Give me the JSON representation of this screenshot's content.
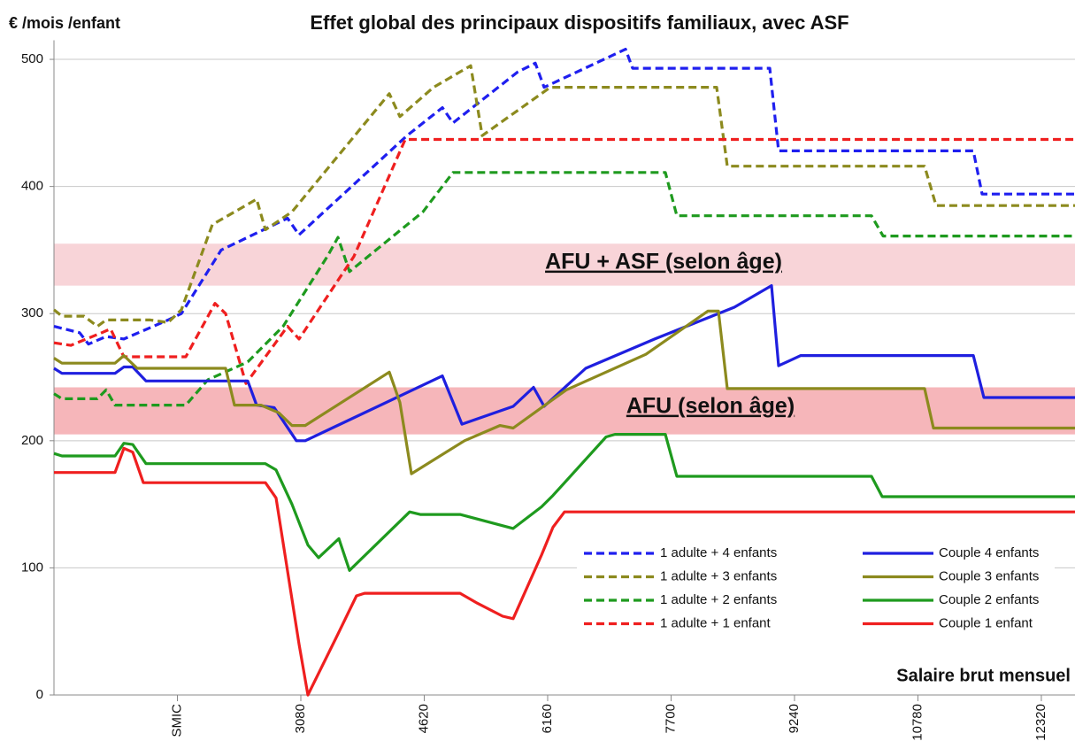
{
  "chart_data": {
    "type": "line",
    "title": "Effet global des principaux dispositifs familiaux, avec ASF",
    "y_label": "€ /mois /enfant",
    "x_label": "Salaire brut mensuel",
    "xlim": [
      0,
      12740
    ],
    "ylim": [
      0,
      515
    ],
    "xticks": [
      {
        "value": 1540,
        "label": "SMIC"
      },
      3080,
      4620,
      6160,
      7700,
      9240,
      10780,
      12320
    ],
    "yticks": [
      0,
      100,
      200,
      300,
      400,
      500
    ],
    "grid": true,
    "legend": "lower right",
    "bands": [
      {
        "label": "AFU + ASF (selon âge)",
        "range": [
          322,
          355
        ],
        "color": "#f7cdd1"
      },
      {
        "label": "AFU (selon âge)",
        "range": [
          205,
          242
        ],
        "color": "#f5a9ae"
      }
    ],
    "series": [
      {
        "name": "1 adulte + 4 enfants",
        "color": "#1f1fef",
        "style": "dashed",
        "x": [
          0,
          320,
          431,
          651,
          872,
          1424,
          1590,
          2087,
          2915,
          3058,
          4405,
          4847,
          4979,
          5785,
          6006,
          6116,
          7132,
          7220,
          8931,
          9042,
          11471,
          11581,
          12740
        ],
        "values": [
          290,
          285,
          276,
          282,
          280,
          295,
          300,
          350,
          375,
          362,
          440,
          462,
          450,
          490,
          497,
          478,
          508,
          493,
          493,
          428,
          428,
          394,
          394
        ]
      },
      {
        "name": "1 adulte + 3 enfants",
        "color": "#8c8a1e",
        "style": "dashed",
        "x": [
          0,
          99,
          375,
          541,
          651,
          1203,
          1424,
          1590,
          1976,
          2528,
          2639,
          2970,
          4184,
          4317,
          4736,
          5200,
          5343,
          6193,
          8269,
          8401,
          10863,
          11007,
          12740
        ],
        "values": [
          303,
          298,
          298,
          290,
          295,
          295,
          293,
          303,
          370,
          390,
          366,
          380,
          473,
          455,
          478,
          495,
          440,
          478,
          478,
          416,
          416,
          385,
          385
        ]
      },
      {
        "name": "1 adulte + 2 enfants",
        "color": "#1e9a1e",
        "style": "dashed",
        "x": [
          0,
          99,
          541,
          651,
          762,
          1645,
          1921,
          2418,
          2859,
          3411,
          3544,
          3687,
          4604,
          4979,
          7629,
          7772,
          10201,
          10345,
          12740
        ],
        "values": [
          237,
          233,
          233,
          240,
          228,
          228,
          248,
          262,
          290,
          345,
          360,
          333,
          380,
          411,
          411,
          377,
          377,
          361,
          361
        ]
      },
      {
        "name": "1 adulte + 1 enfant",
        "color": "#ef1f1f",
        "style": "dashed",
        "x": [
          0,
          210,
          596,
          707,
          872,
          1645,
          2009,
          2142,
          2396,
          2915,
          3058,
          3743,
          4383,
          12740
        ],
        "values": [
          277,
          275,
          285,
          288,
          266,
          266,
          308,
          300,
          245,
          290,
          280,
          345,
          437,
          437
        ]
      },
      {
        "name": "Couple 4 enfants",
        "color": "#1f1fdf",
        "style": "solid",
        "x": [
          0,
          99,
          762,
          872,
          983,
          1148,
          2418,
          2528,
          2749,
          3025,
          3135,
          4847,
          5090,
          5730,
          5984,
          6116,
          6635,
          7496,
          8490,
          8953,
          9042,
          9318,
          11471,
          11603,
          12740
        ],
        "values": [
          257,
          253,
          253,
          258,
          258,
          247,
          247,
          228,
          226,
          200,
          200,
          251,
          213,
          227,
          242,
          227,
          257,
          280,
          305,
          322,
          259,
          267,
          267,
          234,
          234
        ]
      },
      {
        "name": "Couple 3 enfants",
        "color": "#8c8a1e",
        "style": "solid",
        "x": [
          0,
          99,
          762,
          872,
          1038,
          2142,
          2252,
          2583,
          2804,
          2970,
          3135,
          4184,
          4317,
          4460,
          5123,
          5564,
          5730,
          6392,
          7386,
          8158,
          8291,
          8401,
          10863,
          10974,
          12740
        ],
        "values": [
          265,
          261,
          261,
          267,
          257,
          257,
          228,
          228,
          222,
          212,
          212,
          254,
          230,
          174,
          200,
          212,
          210,
          240,
          268,
          302,
          302,
          241,
          241,
          210,
          210
        ]
      },
      {
        "name": "Couple 2 enfants",
        "color": "#1e9a1e",
        "style": "solid",
        "x": [
          0,
          99,
          762,
          872,
          983,
          1148,
          2639,
          2771,
          2970,
          3168,
          3301,
          3555,
          3687,
          4438,
          4571,
          5067,
          5730,
          6083,
          6227,
          6889,
          6999,
          7629,
          7772,
          10201,
          10334,
          12740
        ],
        "values": [
          190,
          188,
          188,
          198,
          197,
          182,
          182,
          177,
          150,
          118,
          108,
          123,
          98,
          144,
          142,
          142,
          131,
          148,
          157,
          203,
          205,
          205,
          172,
          172,
          156,
          156
        ]
      },
      {
        "name": "Couple 1 enfant",
        "color": "#ef1f1f",
        "style": "solid",
        "x": [
          0,
          762,
          872,
          983,
          1115,
          2639,
          2771,
          3058,
          3168,
          3544,
          3775,
          3875,
          5067,
          5288,
          5598,
          5730,
          6083,
          6227,
          6370,
          12740
        ],
        "values": [
          175,
          175,
          194,
          191,
          167,
          167,
          155,
          40,
          0,
          48,
          78,
          80,
          80,
          72,
          62,
          60,
          110,
          132,
          144,
          144
        ]
      }
    ]
  }
}
